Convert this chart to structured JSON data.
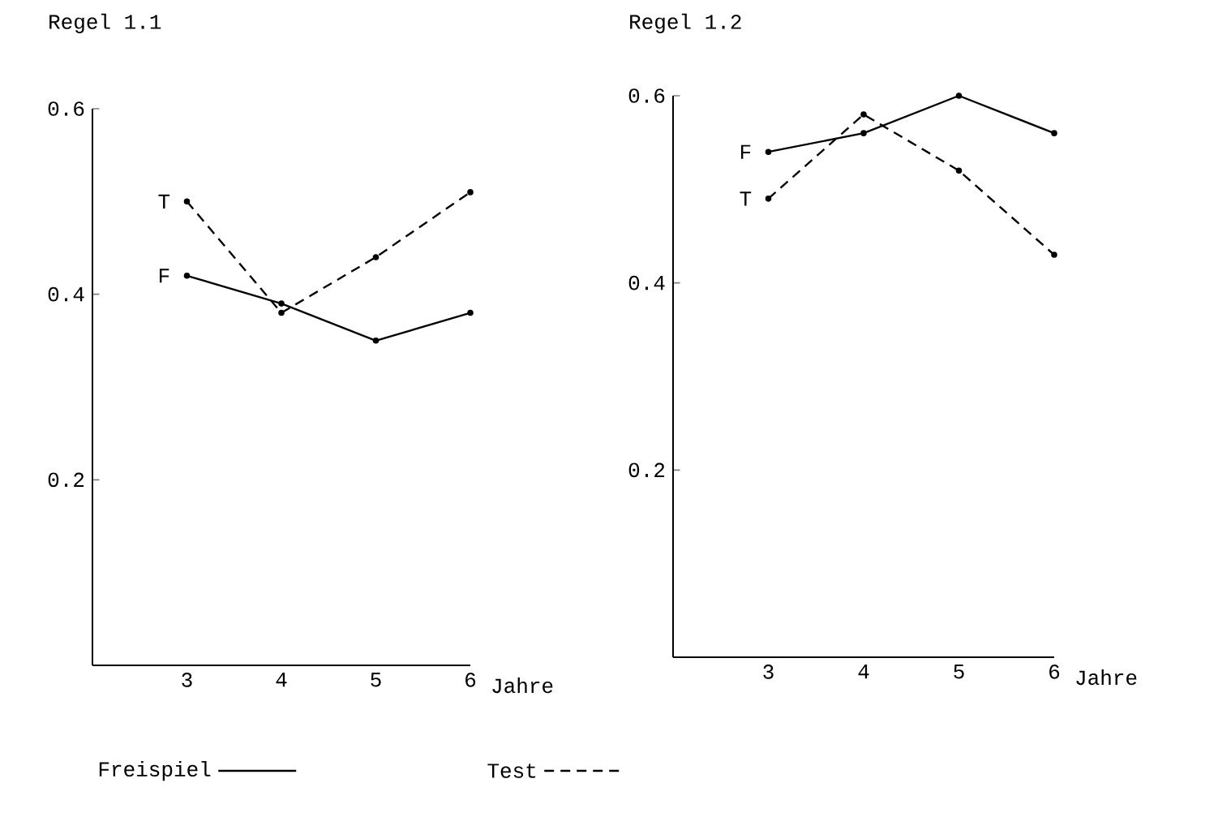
{
  "chart_data": [
    {
      "type": "line",
      "title": "Regel 1.1",
      "xlabel": "Jahre",
      "x": [
        3,
        4,
        5,
        6
      ],
      "xlim": [
        2,
        6
      ],
      "xticks": [
        3,
        4,
        5,
        6
      ],
      "ylim": [
        0,
        0.6
      ],
      "yticks": [
        0.2,
        0.4,
        0.6
      ],
      "series": [
        {
          "name": "Freispiel",
          "color": "#000000",
          "line_style": "solid",
          "values": [
            0.42,
            0.39,
            0.35,
            0.38
          ]
        },
        {
          "name": "Test",
          "color": "#000000",
          "line_style": "dashed",
          "values": [
            0.5,
            0.38,
            0.44,
            0.51
          ]
        }
      ],
      "annotations": [
        "F",
        "T"
      ],
      "marker": "circle",
      "grid": false,
      "legend": "bottom"
    },
    {
      "type": "line",
      "title": "Regel 1.2",
      "xlabel": "Jahre",
      "x": [
        3,
        4,
        5,
        6
      ],
      "xlim": [
        2,
        6
      ],
      "xticks": [
        3,
        4,
        5,
        6
      ],
      "ylim": [
        0,
        0.6
      ],
      "yticks": [
        0.2,
        0.4,
        0.6
      ],
      "series": [
        {
          "color": "#000000",
          "line_style": "solid",
          "values": [
            0.54,
            0.56,
            0.6,
            0.56
          ]
        },
        {
          "color": "#000000",
          "line_style": "dashed",
          "values": [
            0.49,
            0.58,
            0.52,
            0.43
          ]
        }
      ],
      "annotations": [
        "F",
        "T"
      ],
      "marker": "circle",
      "grid": false
    }
  ]
}
